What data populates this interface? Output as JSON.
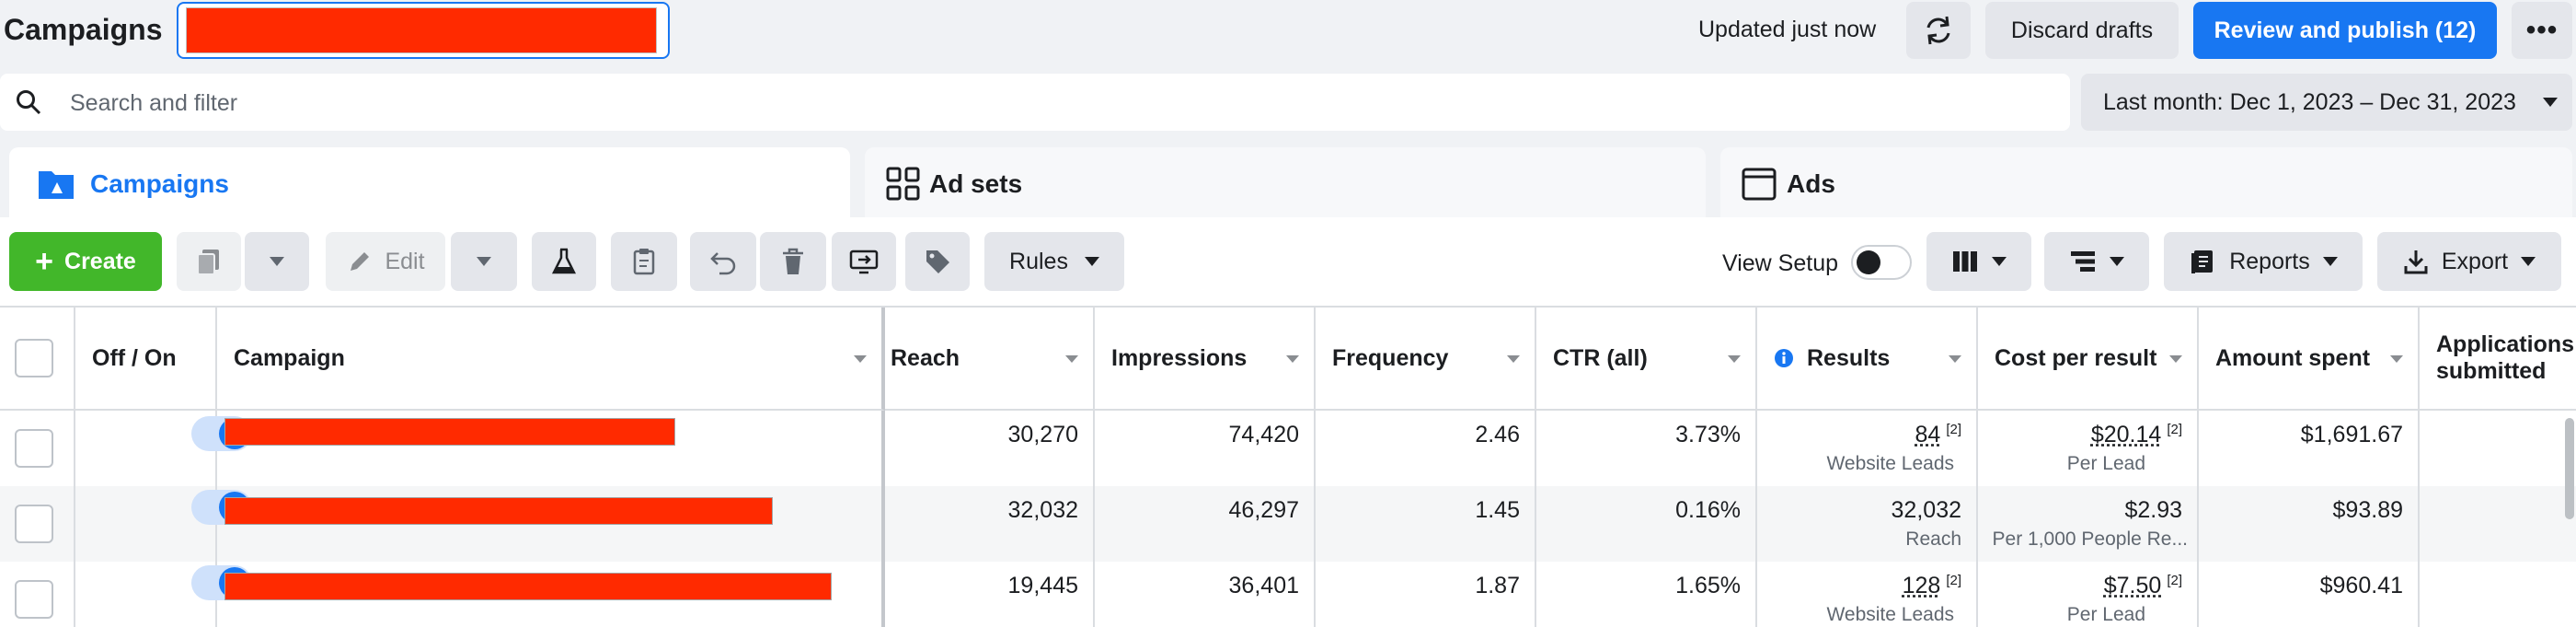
{
  "header": {
    "title": "Campaigns",
    "updated_label": "Updated just now",
    "discard_label": "Discard drafts",
    "publish_label": "Review and publish (12)",
    "more_label": "•••"
  },
  "search": {
    "placeholder": "Search and filter"
  },
  "date_range": {
    "label": "Last month: Dec 1, 2023 – Dec 31, 2023"
  },
  "tabs": [
    {
      "label": "Campaigns",
      "icon": "folder-icon",
      "active": true
    },
    {
      "label": "Ad sets",
      "icon": "grid-icon",
      "active": false
    },
    {
      "label": "Ads",
      "icon": "ad-window-icon",
      "active": false
    }
  ],
  "toolbar": {
    "create_label": "Create",
    "edit_label": "Edit",
    "rules_label": "Rules",
    "view_setup_label": "View Setup",
    "reports_label": "Reports",
    "export_label": "Export"
  },
  "table": {
    "columns": [
      "Off / On",
      "Campaign",
      "Reach",
      "Impressions",
      "Frequency",
      "CTR (all)",
      "Results",
      "Cost per result",
      "Amount spent",
      "Applications submitted"
    ],
    "rows": [
      {
        "reach": "30,270",
        "impressions": "74,420",
        "frequency": "2.46",
        "ctr": "3.73%",
        "results": "84",
        "results_sup": "[2]",
        "results_sub": "Website Leads",
        "cost": "$20.14",
        "cost_sup": "[2]",
        "cost_sub": "Per Lead",
        "spent": "$1,691.67"
      },
      {
        "reach": "32,032",
        "impressions": "46,297",
        "frequency": "1.45",
        "ctr": "0.16%",
        "results": "32,032",
        "results_sup": "",
        "results_sub": "Reach",
        "cost": "$2.93",
        "cost_sup": "",
        "cost_sub": "Per 1,000 People Re...",
        "spent": "$93.89"
      },
      {
        "reach": "19,445",
        "impressions": "36,401",
        "frequency": "1.87",
        "ctr": "1.65%",
        "results": "128",
        "results_sup": "[2]",
        "results_sub": "Website Leads",
        "cost": "$7.50",
        "cost_sup": "[2]",
        "cost_sub": "Per Lead",
        "spent": "$960.41"
      }
    ]
  },
  "colors": {
    "accent": "#1877f2",
    "create_green": "#42b72a",
    "redaction": "#ff2a00"
  }
}
